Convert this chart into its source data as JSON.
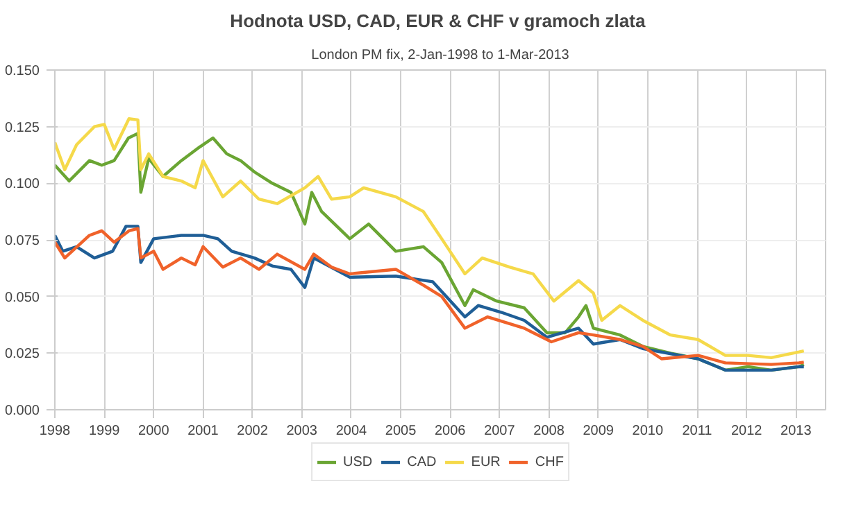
{
  "chart_data": {
    "type": "line",
    "title": "Hodnota USD, CAD, EUR & CHF  v gramoch zlata",
    "subtitle": "London PM fix, 2-Jan-1998 to 1-Mar-2013",
    "xlim": [
      1998,
      2013.6
    ],
    "xticks": [
      1998,
      1999,
      2000,
      2001,
      2002,
      2003,
      2004,
      2005,
      2006,
      2007,
      2008,
      2009,
      2010,
      2011,
      2012,
      2013
    ],
    "ylim": [
      0,
      0.15
    ],
    "yticks": [
      {
        "value": 0,
        "label": "0.000"
      },
      {
        "value": 0.025,
        "label": "0.025"
      },
      {
        "value": 0.05,
        "label": "0.050"
      },
      {
        "value": 0.075,
        "label": "0.075"
      },
      {
        "value": 0.1,
        "label": "0.100"
      },
      {
        "value": 0.125,
        "label": "0.125"
      },
      {
        "value": 0.15,
        "label": "0.150"
      }
    ],
    "grid": true,
    "legend": "bottom",
    "marker": "none",
    "line_style": "solid",
    "series": [
      {
        "name": "USD",
        "color": "#6aa533",
        "x": [
          1998.0,
          1998.29,
          1998.7,
          1998.95,
          1999.2,
          1999.49,
          1999.68,
          1999.74,
          1999.9,
          2000.19,
          2000.56,
          2000.93,
          2001.2,
          2001.48,
          2001.76,
          2002.04,
          2002.4,
          2002.78,
          2003.06,
          2003.2,
          2003.4,
          2003.97,
          2004.35,
          2004.9,
          2005.46,
          2005.83,
          2006.3,
          2006.47,
          2006.94,
          2007.5,
          2007.96,
          2008.33,
          2008.6,
          2008.75,
          2008.9,
          2009.44,
          2009.9,
          2010.46,
          2011.02,
          2011.57,
          2012.03,
          2012.5,
          2013.06,
          2013.16
        ],
        "values": [
          0.108,
          0.101,
          0.11,
          0.108,
          0.11,
          0.12,
          0.122,
          0.096,
          0.111,
          0.103,
          0.11,
          0.116,
          0.12,
          0.113,
          0.11,
          0.105,
          0.1,
          0.096,
          0.082,
          0.096,
          0.0875,
          0.0755,
          0.082,
          0.07,
          0.072,
          0.065,
          0.046,
          0.053,
          0.048,
          0.045,
          0.034,
          0.034,
          0.041,
          0.046,
          0.036,
          0.033,
          0.028,
          0.025,
          0.0225,
          0.0175,
          0.019,
          0.0175,
          0.019,
          0.02
        ]
      },
      {
        "name": "CAD",
        "color": "#1f5e96",
        "x": [
          1998.0,
          1998.16,
          1998.44,
          1998.8,
          1999.17,
          1999.44,
          1999.68,
          1999.74,
          2000.0,
          2000.56,
          2001.0,
          2001.3,
          2001.58,
          2002.04,
          2002.4,
          2002.78,
          2003.06,
          2003.24,
          2003.97,
          2004.9,
          2005.65,
          2006.3,
          2006.57,
          2007.04,
          2007.5,
          2007.96,
          2008.6,
          2008.9,
          2009.44,
          2009.9,
          2011.02,
          2011.57,
          2012.5,
          2013.06,
          2013.16
        ],
        "values": [
          0.077,
          0.07,
          0.072,
          0.067,
          0.07,
          0.081,
          0.081,
          0.065,
          0.0755,
          0.077,
          0.077,
          0.0755,
          0.07,
          0.067,
          0.0635,
          0.062,
          0.054,
          0.067,
          0.0585,
          0.059,
          0.0565,
          0.041,
          0.046,
          0.043,
          0.0395,
          0.032,
          0.036,
          0.029,
          0.031,
          0.027,
          0.0225,
          0.0175,
          0.0175,
          0.019,
          0.019
        ]
      },
      {
        "name": "EUR",
        "color": "#f5d94a",
        "x": [
          1998.0,
          1998.2,
          1998.44,
          1998.8,
          1999.0,
          1999.2,
          1999.5,
          1999.68,
          1999.74,
          1999.9,
          2000.19,
          2000.56,
          2000.84,
          2001.0,
          2001.4,
          2001.76,
          2002.13,
          2002.5,
          2003.06,
          2003.33,
          2003.6,
          2003.97,
          2004.25,
          2004.9,
          2005.46,
          2005.83,
          2006.3,
          2006.65,
          2007.2,
          2007.68,
          2008.1,
          2008.6,
          2008.9,
          2009.07,
          2009.44,
          2009.9,
          2010.46,
          2011.02,
          2011.57,
          2012.03,
          2012.5,
          2013.06,
          2013.16
        ],
        "values": [
          0.118,
          0.106,
          0.117,
          0.125,
          0.126,
          0.115,
          0.1285,
          0.128,
          0.106,
          0.113,
          0.103,
          0.101,
          0.098,
          0.11,
          0.094,
          0.101,
          0.093,
          0.091,
          0.098,
          0.103,
          0.093,
          0.094,
          0.098,
          0.094,
          0.0875,
          0.0755,
          0.06,
          0.067,
          0.063,
          0.06,
          0.048,
          0.057,
          0.0515,
          0.0395,
          0.046,
          0.0395,
          0.033,
          0.031,
          0.024,
          0.024,
          0.023,
          0.0255,
          0.026
        ]
      },
      {
        "name": "CHF",
        "color": "#f0622a",
        "x": [
          1998.0,
          1998.2,
          1998.7,
          1998.95,
          1999.2,
          1999.5,
          1999.68,
          1999.74,
          2000.0,
          2000.19,
          2000.56,
          2000.84,
          2001.0,
          2001.4,
          2001.76,
          2002.13,
          2002.5,
          2003.06,
          2003.24,
          2003.6,
          2003.97,
          2004.9,
          2005.46,
          2005.83,
          2006.3,
          2006.76,
          2007.5,
          2008.05,
          2008.6,
          2008.9,
          2009.44,
          2009.9,
          2010.28,
          2011.02,
          2011.57,
          2012.5,
          2013.06,
          2013.16
        ],
        "values": [
          0.074,
          0.067,
          0.077,
          0.079,
          0.074,
          0.079,
          0.08,
          0.067,
          0.07,
          0.062,
          0.067,
          0.064,
          0.072,
          0.063,
          0.067,
          0.062,
          0.0687,
          0.062,
          0.0687,
          0.063,
          0.06,
          0.062,
          0.055,
          0.05,
          0.036,
          0.041,
          0.036,
          0.03,
          0.034,
          0.033,
          0.031,
          0.028,
          0.0225,
          0.024,
          0.0207,
          0.02,
          0.0207,
          0.021
        ]
      }
    ]
  }
}
